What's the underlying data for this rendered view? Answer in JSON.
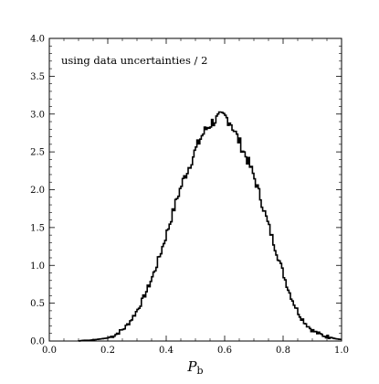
{
  "chart_data": {
    "type": "line",
    "style": "step-histogram",
    "title": "",
    "xlabel": "P",
    "xlabel_subscript": "b",
    "ylabel": "",
    "annotation": "using data uncertainties / 2",
    "xlim": [
      0.0,
      1.0
    ],
    "ylim": [
      0.0,
      4.0
    ],
    "x_ticks": [
      0.0,
      0.2,
      0.4,
      0.6,
      0.8,
      1.0
    ],
    "x_tick_labels": [
      "0.0",
      "0.2",
      "0.4",
      "0.6",
      "0.8",
      "1.0"
    ],
    "y_ticks": [
      0.0,
      0.5,
      1.0,
      1.5,
      2.0,
      2.5,
      3.0,
      3.5,
      4.0
    ],
    "y_tick_labels": [
      "0.0",
      "0.5",
      "1.0",
      "1.5",
      "2.0",
      "2.5",
      "3.0",
      "3.5",
      "4.0"
    ],
    "grid": false,
    "legend": "none",
    "line_color": "#000000",
    "series": [
      {
        "x": [
          0.1,
          0.12,
          0.14,
          0.16,
          0.18,
          0.2,
          0.22,
          0.24,
          0.26,
          0.28,
          0.3,
          0.32,
          0.34,
          0.36,
          0.38,
          0.4,
          0.42,
          0.44,
          0.46,
          0.48,
          0.5,
          0.52,
          0.54,
          0.56,
          0.58,
          0.6,
          0.62,
          0.64,
          0.66,
          0.68,
          0.7,
          0.72,
          0.74,
          0.76,
          0.78,
          0.8,
          0.82,
          0.84,
          0.86,
          0.88,
          0.9,
          0.92,
          0.94,
          0.96,
          0.98,
          1.0
        ],
        "y": [
          0.0,
          0.01,
          0.01,
          0.02,
          0.03,
          0.04,
          0.07,
          0.12,
          0.18,
          0.28,
          0.4,
          0.55,
          0.72,
          0.92,
          1.15,
          1.4,
          1.66,
          1.92,
          2.14,
          2.32,
          2.52,
          2.7,
          2.82,
          2.9,
          2.95,
          2.97,
          2.9,
          2.72,
          2.55,
          2.38,
          2.18,
          1.93,
          1.66,
          1.4,
          1.15,
          0.9,
          0.66,
          0.47,
          0.32,
          0.22,
          0.14,
          0.1,
          0.07,
          0.05,
          0.03,
          0.02
        ]
      }
    ]
  }
}
